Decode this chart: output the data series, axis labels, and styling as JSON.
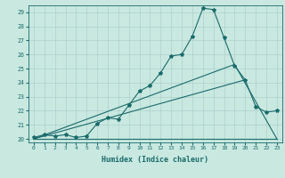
{
  "xlabel": "Humidex (Indice chaleur)",
  "bg_color": "#c8e8e0",
  "line_color": "#1a6b6b",
  "grid_color": "#a8ccc8",
  "xlim": [
    -0.5,
    23.5
  ],
  "ylim": [
    19.75,
    29.5
  ],
  "xticks": [
    0,
    1,
    2,
    3,
    4,
    5,
    6,
    7,
    8,
    9,
    10,
    11,
    12,
    13,
    14,
    15,
    16,
    17,
    18,
    19,
    20,
    21,
    22,
    23
  ],
  "yticks": [
    20,
    21,
    22,
    23,
    24,
    25,
    26,
    27,
    28,
    29
  ],
  "line1_x": [
    0,
    1,
    2,
    3,
    4,
    5,
    6,
    7,
    8,
    9,
    10,
    11,
    12,
    13,
    14,
    15,
    16,
    17,
    18,
    19,
    20,
    21,
    22,
    23
  ],
  "line1_y": [
    20.1,
    20.3,
    20.2,
    20.3,
    20.1,
    20.2,
    21.1,
    21.5,
    21.4,
    22.4,
    23.4,
    23.8,
    24.7,
    25.9,
    26.0,
    27.3,
    29.3,
    29.2,
    27.2,
    25.2,
    24.2,
    22.3,
    21.9,
    22.0
  ],
  "line2_x": [
    0,
    1,
    2,
    3,
    4,
    5,
    6,
    7,
    8,
    9,
    10,
    11,
    12,
    13,
    14,
    15,
    16,
    17,
    18,
    19,
    20,
    21,
    22,
    23
  ],
  "line2_y": [
    20.0,
    20.0,
    20.0,
    20.0,
    20.0,
    20.0,
    20.0,
    20.0,
    20.0,
    20.0,
    20.0,
    20.0,
    20.0,
    20.0,
    20.0,
    20.0,
    20.0,
    20.0,
    20.0,
    20.0,
    20.0,
    20.0,
    20.0,
    20.0
  ],
  "line3_x": [
    0,
    19
  ],
  "line3_y": [
    20.0,
    25.3
  ],
  "line4_x": [
    0,
    20
  ],
  "line4_y": [
    20.0,
    24.2
  ],
  "line5_x": [
    19,
    23
  ],
  "line5_y": [
    25.3,
    20.0
  ]
}
